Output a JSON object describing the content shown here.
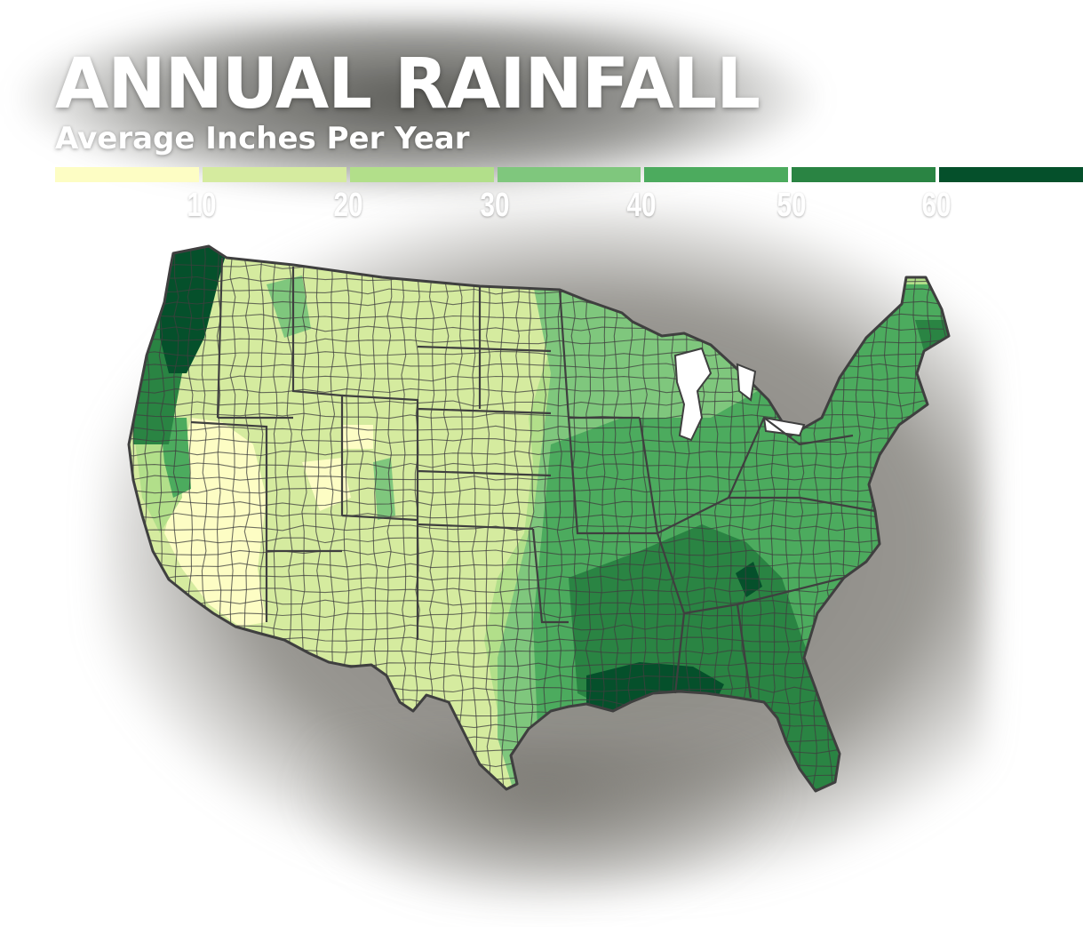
{
  "header": {
    "title": "ANNUAL RAINFALL",
    "subtitle": "Average Inches Per Year"
  },
  "legend": {
    "colors": [
      "#fdfdc4",
      "#d5eb9f",
      "#b2df8a",
      "#7fc77d",
      "#4cab5e",
      "#2a8443",
      "#05502b"
    ],
    "ticks": [
      "10",
      "20",
      "30",
      "40",
      "50",
      "60"
    ]
  },
  "map": {
    "outline_color": "#3f3f3f"
  }
}
